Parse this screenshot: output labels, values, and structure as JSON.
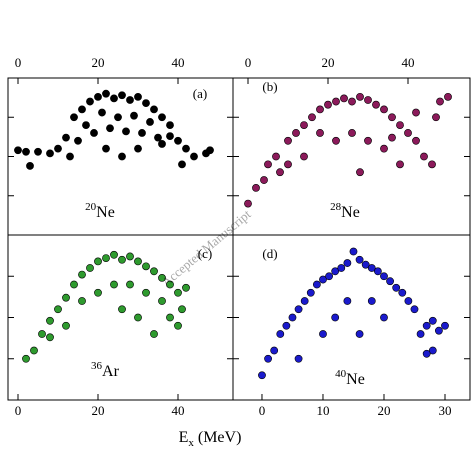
{
  "figure": {
    "xlabel_main": "E",
    "xlabel_sub": "x",
    "xlabel_unit": "(MeV)",
    "watermark": "Accepted Manuscript"
  },
  "chart_data": [
    {
      "type": "scatter",
      "panel_label": "(a)",
      "isotope_mass": "20",
      "isotope_element": "Ne",
      "color": "#000000",
      "xticks_side": "top",
      "xlim": [
        -2.5,
        53.75
      ],
      "ylim": [
        0,
        10
      ],
      "xticks": [
        0,
        20,
        40
      ],
      "x": [
        14,
        16,
        18,
        20,
        22,
        24,
        26,
        28,
        30,
        32,
        34,
        36,
        38,
        17,
        21,
        25,
        29,
        33,
        19,
        23,
        27,
        31,
        35,
        12,
        10,
        8,
        5,
        2,
        0,
        3,
        13,
        40,
        42,
        44,
        47,
        48,
        41,
        26,
        22,
        30,
        36,
        15,
        38
      ],
      "y": [
        7.5,
        8,
        8.5,
        8.8,
        9,
        8.7,
        8.9,
        8.6,
        8.8,
        8.4,
        8,
        7.5,
        7,
        7,
        7.8,
        7.5,
        7.6,
        7.2,
        6.5,
        6.8,
        6.6,
        6.5,
        6.2,
        6.2,
        5.5,
        5.2,
        5.3,
        5.3,
        5.4,
        4.4,
        5,
        6,
        5.5,
        5,
        5.2,
        5.4,
        4.5,
        5,
        5.5,
        5.5,
        5.8,
        6,
        6.3
      ]
    },
    {
      "type": "scatter",
      "panel_label": "(b)",
      "isotope_mass": "28",
      "isotope_element": "Ne",
      "color": "#8b1a5a",
      "xticks_side": "top",
      "xlim": [
        -3.75,
        55.5
      ],
      "ylim": [
        0,
        10
      ],
      "xticks": [
        0,
        20,
        40
      ],
      "x": [
        0,
        2,
        4,
        5,
        7,
        8,
        10,
        12,
        14,
        16,
        18,
        20,
        22,
        24,
        26,
        28,
        30,
        32,
        34,
        36,
        38,
        40,
        42,
        44,
        46,
        48,
        50,
        47,
        30,
        26,
        22,
        34,
        38,
        18,
        14,
        10,
        28,
        42,
        36
      ],
      "y": [
        2,
        3,
        3.5,
        4.5,
        5,
        4,
        6,
        6.5,
        7,
        7.5,
        8,
        8.3,
        8.5,
        8.7,
        8.5,
        8.8,
        8.6,
        8.3,
        8,
        7.5,
        7,
        6.5,
        6,
        5,
        4.5,
        8.5,
        8.8,
        7.5,
        6,
        6.5,
        6,
        5.5,
        4.5,
        6.5,
        5,
        4.5,
        4,
        7.8,
        6.2
      ]
    },
    {
      "type": "scatter",
      "panel_label": "(c)",
      "isotope_mass": "36",
      "isotope_element": "Ar",
      "color": "#2e9a2e",
      "xticks_side": "bottom",
      "xlim": [
        -2.5,
        53.75
      ],
      "ylim": [
        0,
        10
      ],
      "xticks": [
        0,
        20,
        40
      ],
      "x": [
        2,
        4,
        6,
        8,
        10,
        12,
        14,
        16,
        18,
        20,
        22,
        24,
        26,
        28,
        30,
        32,
        34,
        36,
        38,
        40,
        42,
        38,
        40,
        16,
        20,
        24,
        28,
        32,
        36,
        12,
        8,
        26,
        30,
        41,
        34
      ],
      "y": [
        2.5,
        3,
        4,
        4.8,
        5.5,
        6.2,
        7,
        7.6,
        8,
        8.4,
        8.6,
        8.8,
        8.5,
        8.7,
        8.4,
        8.1,
        7.8,
        7.4,
        7,
        6.5,
        6.8,
        5,
        4.5,
        6,
        6.5,
        7,
        7,
        6.5,
        6,
        4.5,
        3.8,
        5.5,
        5,
        5.5,
        4
      ]
    },
    {
      "type": "scatter",
      "panel_label": "(d)",
      "isotope_mass": "40",
      "isotope_element": "Ne",
      "color": "#1a1acc",
      "xticks_side": "bottom",
      "xlim": [
        -4.75,
        34.1
      ],
      "ylim": [
        0,
        10
      ],
      "xticks": [
        0,
        10,
        20,
        30
      ],
      "x": [
        0,
        1,
        2,
        3,
        4,
        5,
        6,
        7,
        8,
        9,
        10,
        11,
        12,
        13,
        14,
        15,
        16,
        17,
        18,
        19,
        20,
        21,
        22,
        23,
        24,
        25,
        26,
        27,
        28,
        29,
        30,
        28,
        27,
        12,
        14,
        18,
        20,
        10,
        6,
        16
      ],
      "y": [
        1.5,
        2.5,
        3,
        4,
        4.5,
        5,
        5.5,
        6,
        6.5,
        7,
        7.3,
        7.5,
        7.8,
        8,
        8.3,
        9,
        8.5,
        8.2,
        8,
        7.8,
        7.5,
        7.2,
        6.8,
        6.5,
        6,
        5.5,
        4,
        4.5,
        4.8,
        4.2,
        4.5,
        3,
        2.8,
        5,
        6,
        6,
        5,
        4,
        2.5,
        4
      ]
    }
  ]
}
